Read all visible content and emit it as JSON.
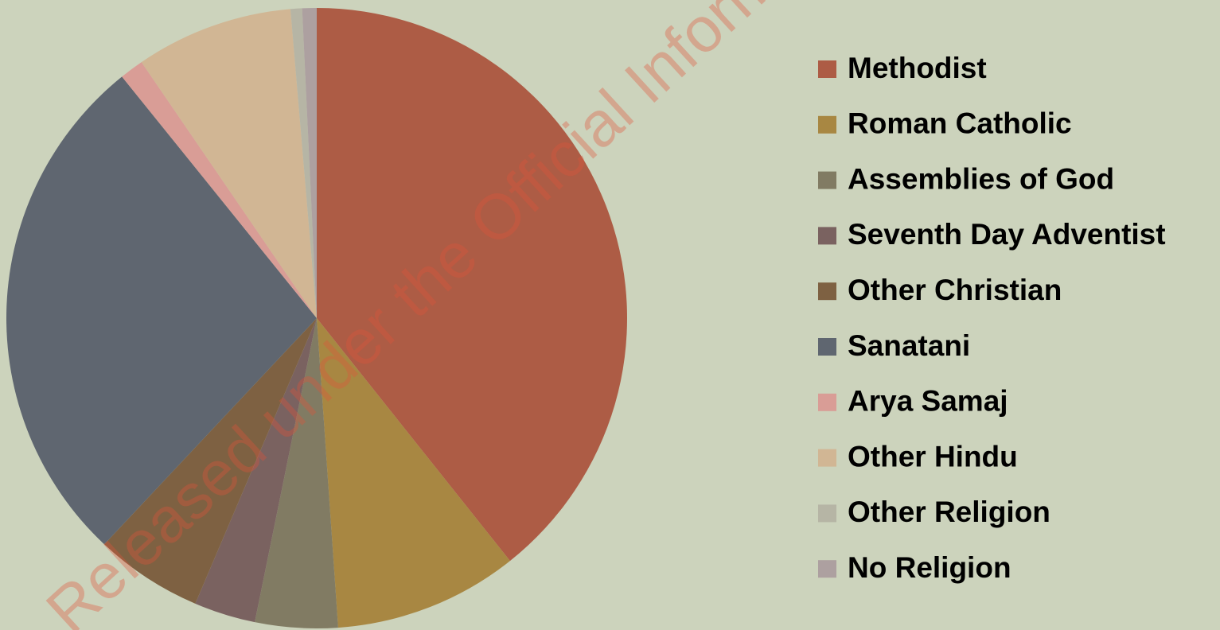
{
  "chart_data": {
    "type": "pie",
    "categories": [
      "Methodist",
      "Roman Catholic",
      "Assemblies of God",
      "Seventh Day Adventist",
      "Other Christian",
      "Sanatani",
      "Arya Samaj",
      "Other Hindu",
      "Other Religion",
      "No Religion"
    ],
    "values": [
      39.3,
      9.6,
      4.3,
      3.2,
      5.6,
      27.2,
      1.25,
      8.2,
      0.6,
      0.75
    ],
    "colors": [
      "#ad5c45",
      "#a88742",
      "#817b63",
      "#7a6260",
      "#7e6142",
      "#5f6670",
      "#d99d96",
      "#d1b694",
      "#b6b5a5",
      "#ada0a0"
    ],
    "legend": "right",
    "annotation": "Released under the Official Information Act"
  }
}
